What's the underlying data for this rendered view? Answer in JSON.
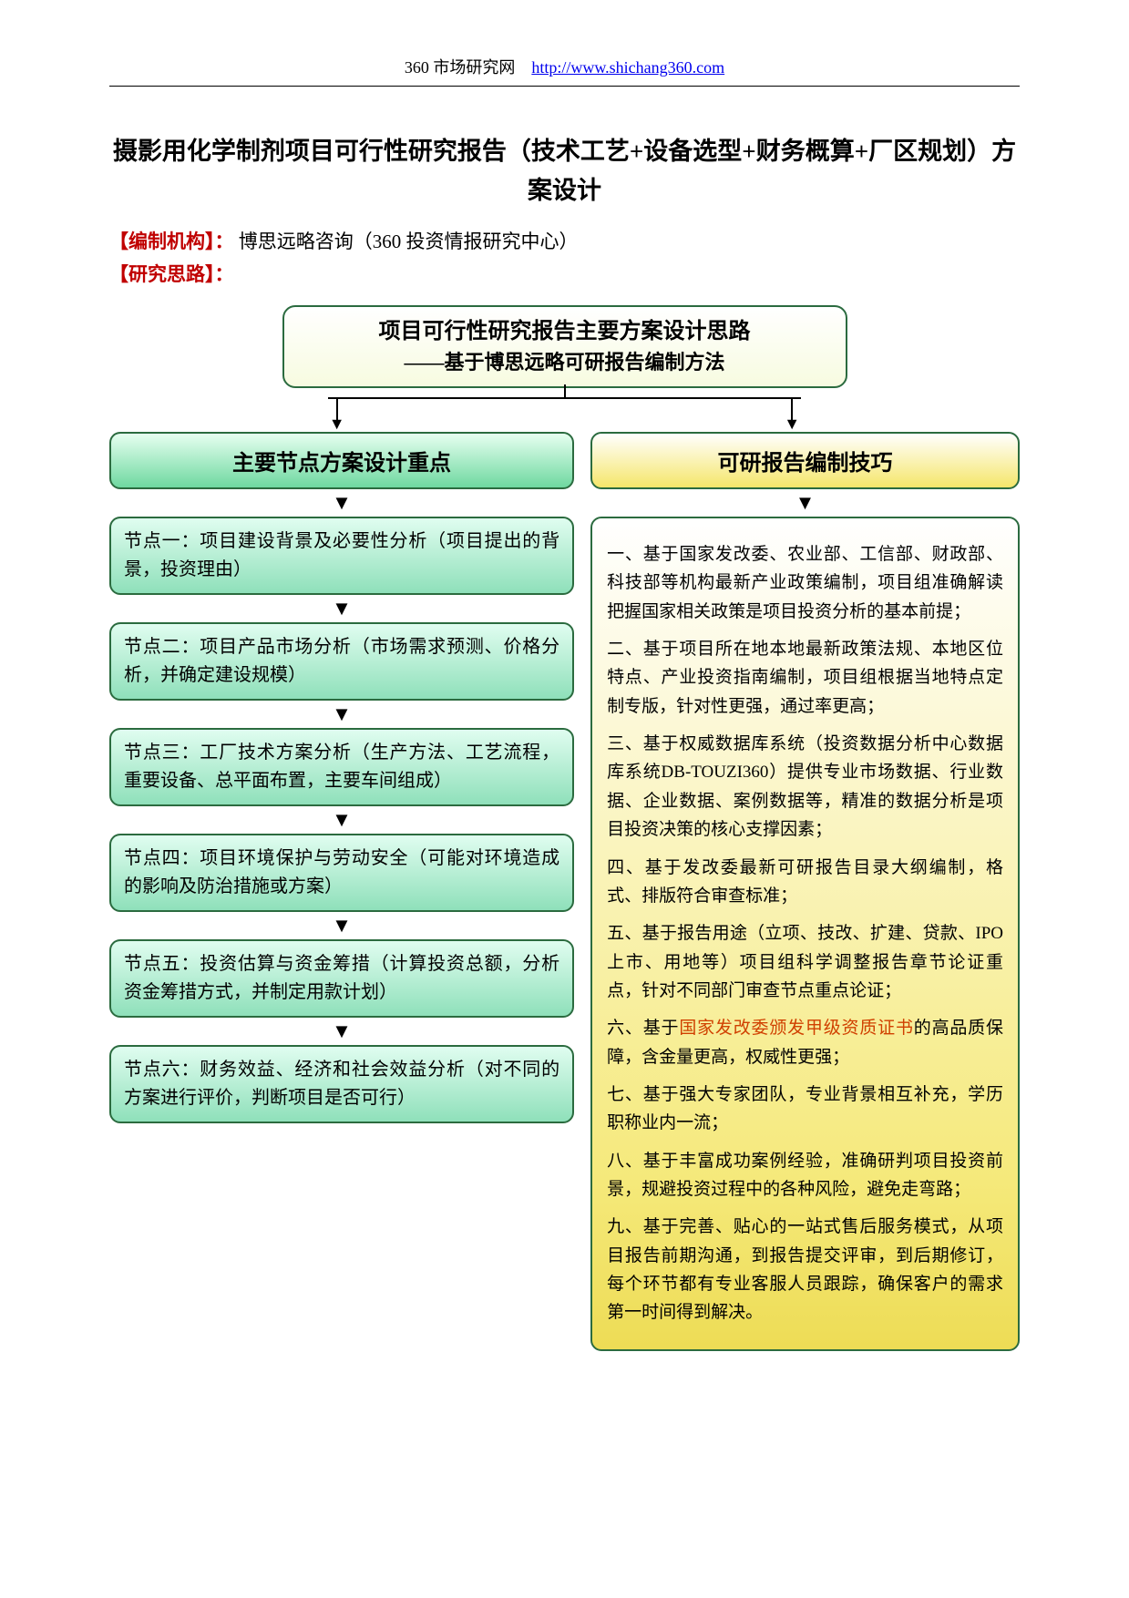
{
  "header": {
    "site_name": "360 市场研究网",
    "url": "http://www.shichang360.com"
  },
  "title": "摄影用化学制剂项目可行性研究报告（技术工艺+设备选型+财务概算+厂区规划）方案设计",
  "meta": {
    "org_label": "【编制机构】：",
    "org_value": "博思远略咨询（360 投资情报研究中心）",
    "thought_label": "【研究思路】："
  },
  "diagram": {
    "top_title": "项目可行性研究报告主要方案设计思路",
    "top_subtitle": "——基于博思远略可研报告编制方法",
    "left_header": "主要节点方案设计重点",
    "right_header": "可研报告编制技巧",
    "nodes": [
      "节点一：项目建设背景及必要性分析（项目提出的背景，投资理由）",
      "节点二：项目产品市场分析（市场需求预测、价格分析，并确定建设规模）",
      "节点三：工厂技术方案分析（生产方法、工艺流程，重要设备、总平面布置，主要车间组成）",
      "节点四：项目环境保护与劳动安全（可能对环境造成的影响及防治措施或方案）",
      "节点五：投资估算与资金筹措（计算投资总额，分析资金筹措方式，并制定用款计划）",
      "节点六：财务效益、经济和社会效益分析（对不同的方案进行评价，判断项目是否可行）"
    ],
    "tips": [
      "一、基于国家发改委、农业部、工信部、财政部、科技部等机构最新产业政策编制，项目组准确解读把握国家相关政策是项目投资分析的基本前提；",
      "二、基于项目所在地本地最新政策法规、本地区位特点、产业投资指南编制，项目组根据当地特点定制专版，针对性更强，通过率更高；",
      "三、基于权威数据库系统（投资数据分析中心数据库系统DB-TOUZI360）提供专业市场数据、行业数据、企业数据、案例数据等，精准的数据分析是项目投资决策的核心支撑因素；",
      "四、基于发改委最新可研报告目录大纲编制，格式、排版符合审查标准；",
      "五、基于报告用途（立项、技改、扩建、贷款、IPO上市、用地等）项目组科学调整报告章节论证重点，针对不同部门审查节点重点论证；",
      "七、基于强大专家团队，专业背景相互补充，学历职称业内一流；",
      "八、基于丰富成功案例经验，准确研判项目投资前景，规避投资过程中的各种风险，避免走弯路；",
      "九、基于完善、贴心的一站式售后服务模式，从项目报告前期沟通，到报告提交评审，到后期修订，每个环节都有专业客服人员跟踪，确保客户的需求第一时间得到解决。"
    ],
    "tip6_prefix": "六、基于",
    "tip6_highlight": "国家发改委颁发甲级资质证书",
    "tip6_suffix": "的高品质保障，含金量更高，权威性更强；"
  },
  "colors": {
    "border": "#2b6b3f",
    "green_grad_top": "#e0fdf0",
    "green_grad_bot": "#8fe0ba",
    "yellow_grad_bot": "#f5e66a",
    "highlight": "#d04000",
    "red_label": "#c00000"
  }
}
